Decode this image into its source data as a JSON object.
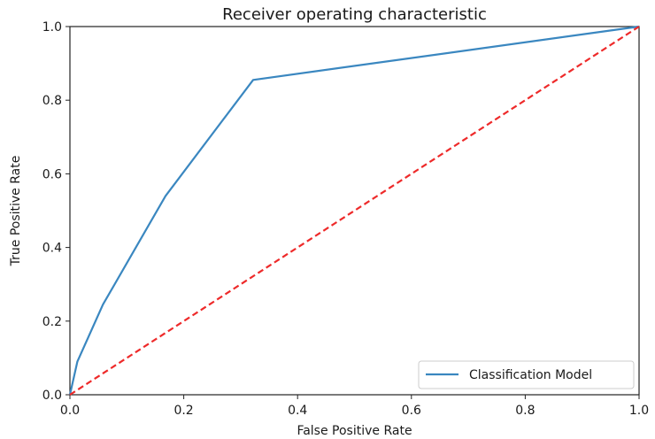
{
  "chart_data": {
    "type": "line",
    "title": "Receiver operating characteristic",
    "xlabel": "False Positive Rate",
    "ylabel": "True Positive Rate",
    "xlim": [
      0.0,
      1.0
    ],
    "ylim": [
      0.0,
      1.0
    ],
    "xticks": [
      "0.0",
      "0.2",
      "0.4",
      "0.6",
      "0.8",
      "1.0"
    ],
    "yticks": [
      "0.0",
      "0.2",
      "0.4",
      "0.6",
      "0.8",
      "1.0"
    ],
    "grid": false,
    "legend": {
      "placement": "lower-right"
    },
    "series": [
      {
        "name": "Classification Model",
        "color": "#3a87c0",
        "style": "solid",
        "x": [
          0.0,
          0.013,
          0.058,
          0.168,
          0.322,
          1.0
        ],
        "y": [
          0.0,
          0.09,
          0.245,
          0.54,
          0.855,
          1.0
        ]
      },
      {
        "color": "#ee2a2a",
        "style": "dashed",
        "x": [
          0.0,
          1.0
        ],
        "y": [
          0.0,
          1.0
        ]
      }
    ]
  }
}
